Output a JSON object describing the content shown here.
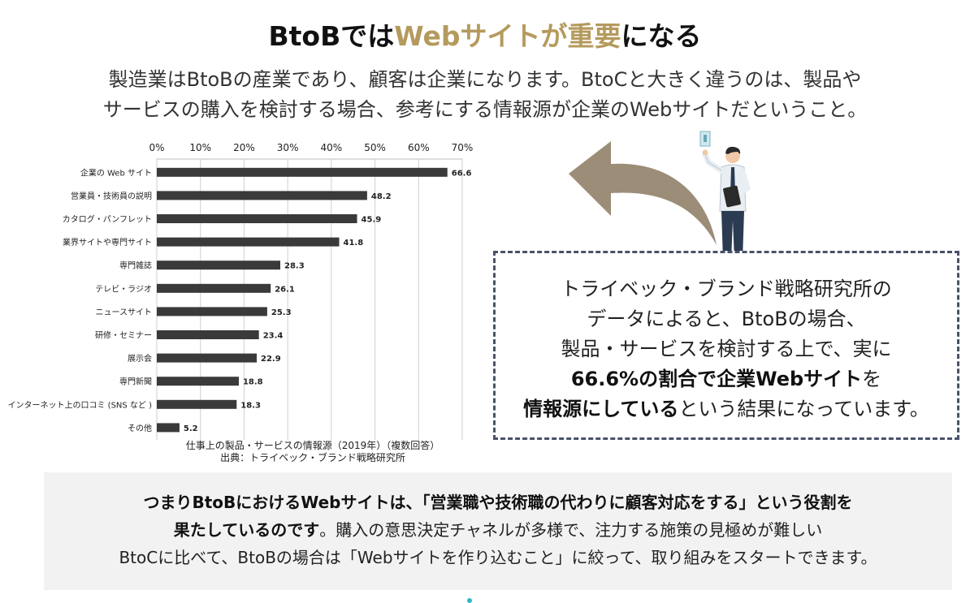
{
  "header": {
    "title_pre": "BtoBでは",
    "title_accent": "Webサイトが重要",
    "title_post": "になる"
  },
  "lead": {
    "line1": "製造業はBtoBの産業であり、顧客は企業になります。BtoCと大きく違うのは、製品や",
    "line2": "サービスの購入を検討する場合、参考にする情報源が企業のWebサイトだということ。"
  },
  "chart_data": {
    "type": "bar",
    "orientation": "horizontal",
    "categories": [
      "企業の Web サイト",
      "営業員・技術員の説明",
      "カタログ・パンフレット",
      "業界サイトや専門サイト",
      "専門雑誌",
      "テレビ・ラジオ",
      "ニュースサイト",
      "研修・セミナー",
      "展示会",
      "専門新聞",
      "インターネット上の口コミ (SNS など )",
      "その他"
    ],
    "values": [
      66.6,
      48.2,
      45.9,
      41.8,
      28.3,
      26.1,
      25.3,
      23.4,
      22.9,
      18.8,
      18.3,
      5.2
    ],
    "value_labels": [
      "66.6",
      "48.2",
      "45.9",
      "41.8",
      "28.3",
      "26.1",
      "25.3",
      "23.4",
      "22.9",
      "18.8",
      "18.3",
      "5.2"
    ],
    "x_ticks": [
      0,
      10,
      20,
      30,
      40,
      50,
      60,
      70
    ],
    "x_tick_labels": [
      "0%",
      "10%",
      "20%",
      "30%",
      "40%",
      "50%",
      "60%",
      "70%"
    ],
    "xlim": [
      0,
      70
    ],
    "grid": true,
    "axis_position": "top",
    "bar_color": "#3a3a3a",
    "caption_line1": "仕事上の製品・サービスの情報源（2019年）（複数回答）",
    "caption_line2": "出典：トライベック・ブランド戦略研究所"
  },
  "callout": {
    "line1": "トライベック・ブランド戦略研究所の",
    "line2": "データによると、BtoBの場合、",
    "line3": "製品・サービスを検討する上で、実に",
    "line4_bold": "66.6%の割合で企業Webサイト",
    "line4_tail": "を",
    "line5_bold": "情報源にしている",
    "line5_tail": "という結果になっています。"
  },
  "summary": {
    "line1_bold": "つまりBtoBにおけるWebサイトは、「営業職や技術職の代わりに顧客対応をする」という役割を",
    "line2_bold": "果たしているのです",
    "line2_tail": "。購入の意思決定チャネルが多様で、注力する施策の見極めが難しい",
    "line3": "BtoCに比べて、BtoBの場合は「Webサイトを作り込むこと」に絞って、取り組みをスタートできます。"
  },
  "colors": {
    "accent": "#b49a5d",
    "arrow": "#9c8d78",
    "callout_border": "#48526a",
    "summary_bg": "#f2f2f2"
  },
  "icons": {
    "arrow": "curved-arrow-icon",
    "person": "businessman-with-tablet-icon"
  }
}
